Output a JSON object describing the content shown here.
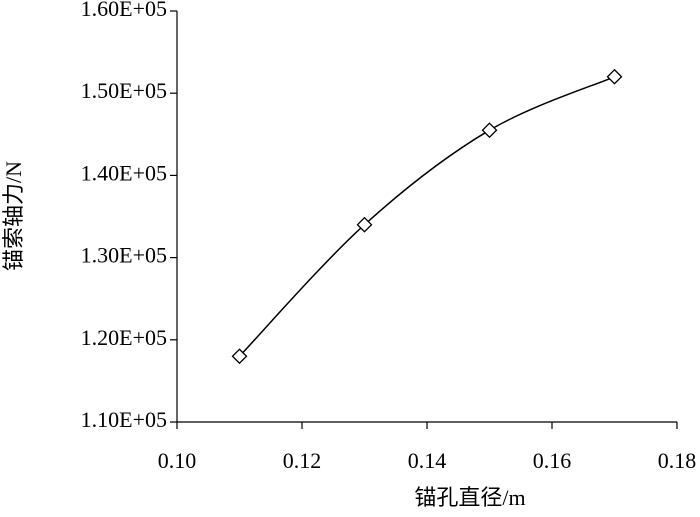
{
  "chart_data": {
    "type": "line",
    "x_label": "锚孔直径/m",
    "y_label": "锚索轴力/N",
    "x": [
      0.11,
      0.13,
      0.15,
      0.17
    ],
    "series": [
      {
        "color": "#000000",
        "values": [
          118000,
          134000,
          145500,
          152000
        ]
      }
    ],
    "marker": "diamond",
    "smooth": true,
    "grid": false,
    "xlim": [
      0.1,
      0.18
    ],
    "xticks": [
      {
        "value": 0.1,
        "label": "0.10"
      },
      0.12,
      0.14,
      0.16,
      0.18
    ],
    "ylim": [
      110000,
      160000
    ],
    "yticks": [
      {
        "value": 110000,
        "label": "1.10E+05"
      },
      {
        "value": 120000,
        "label": "1.20E+05"
      },
      {
        "value": 130000,
        "label": "1.30E+05"
      },
      {
        "value": 140000,
        "label": "1.40E+05"
      },
      {
        "value": 150000,
        "label": "1.50E+05"
      },
      {
        "value": 160000,
        "label": "1.60E+05"
      }
    ]
  }
}
